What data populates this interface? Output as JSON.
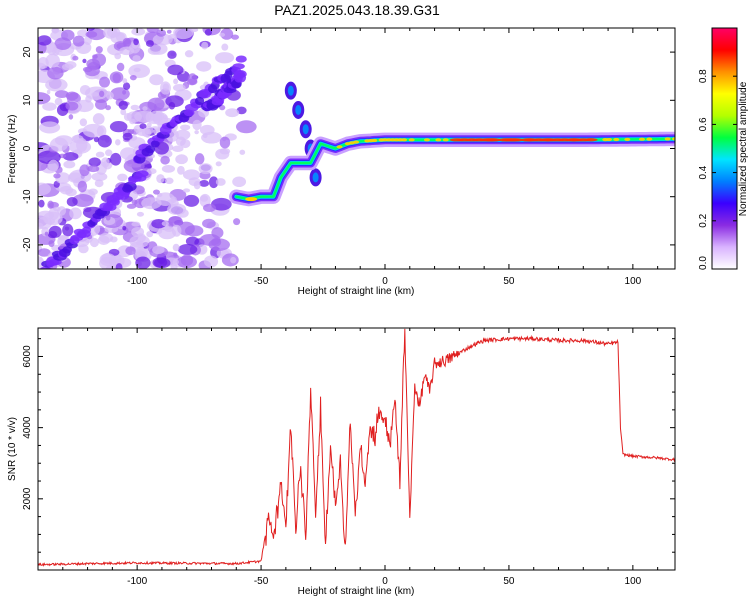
{
  "figure": {
    "title": "PAZ1.2025.043.18.39.G31"
  },
  "chart_data": [
    {
      "type": "heatmap",
      "title": "PAZ1.2025.043.18.39.G31",
      "xlabel": "Height of straight line (km)",
      "ylabel": "Frequency (Hz)",
      "xlim": [
        -140,
        117
      ],
      "ylim": [
        -25,
        25
      ],
      "xticks": [
        -100,
        -50,
        0,
        50,
        100
      ],
      "yticks": [
        -20,
        -10,
        0,
        10,
        20
      ],
      "colorbar": {
        "label": "Normalized spectral amplitude",
        "range": [
          0,
          1
        ],
        "ticks": [
          "0.0",
          "0.2",
          "0.4",
          "0.6",
          "0.8"
        ],
        "colors": [
          "#ffffff",
          "#d9b3ff",
          "#8a2be2",
          "#3a00ff",
          "#0080ff",
          "#00e5ff",
          "#00ff40",
          "#b4ff00",
          "#ffff00",
          "#ff9000",
          "#ff0000",
          "#ff0066"
        ]
      },
      "features": {
        "noise_region_x": [
          -140,
          -52
        ],
        "diagonal_streaks": [
          {
            "x": [
              -137,
              -98
            ],
            "y": [
              -25,
              -5
            ]
          },
          {
            "x": [
              -100,
              -58
            ],
            "y": [
              -2,
              18
            ]
          },
          {
            "x": [
              -72,
              -58
            ],
            "y": [
              8,
              15
            ]
          }
        ],
        "ridge": [
          {
            "x": -60,
            "y": -10
          },
          {
            "x": -55,
            "y": -10.5
          },
          {
            "x": -50,
            "y": -10
          },
          {
            "x": -45,
            "y": -10
          },
          {
            "x": -42,
            "y": -6
          },
          {
            "x": -38,
            "y": -3
          },
          {
            "x": -35,
            "y": -3
          },
          {
            "x": -30,
            "y": -3
          },
          {
            "x": -26,
            "y": 1
          },
          {
            "x": -20,
            "y": 0
          },
          {
            "x": -15,
            "y": 1
          },
          {
            "x": -10,
            "y": 1.5
          },
          {
            "x": 0,
            "y": 1.8
          },
          {
            "x": 20,
            "y": 1.8
          },
          {
            "x": 50,
            "y": 1.8
          },
          {
            "x": 80,
            "y": 1.8
          },
          {
            "x": 117,
            "y": 2
          }
        ],
        "secondary_ridge": [
          {
            "x": -38,
            "y": 12
          },
          {
            "x": -35,
            "y": 8
          },
          {
            "x": -32,
            "y": 4
          },
          {
            "x": -30,
            "y": 0
          },
          {
            "x": -28,
            "y": -6
          }
        ]
      }
    },
    {
      "type": "line",
      "xlabel": "Height of straight line (km)",
      "ylabel": "SNR (10 * v/v)",
      "xlim": [
        -140,
        117
      ],
      "ylim": [
        0,
        6800
      ],
      "xticks": [
        -100,
        -50,
        0,
        50,
        100
      ],
      "yticks": [
        2000,
        4000,
        6000
      ],
      "color": "#e02020",
      "x": [
        -140,
        -120,
        -100,
        -80,
        -60,
        -50,
        -47,
        -45,
        -42,
        -40,
        -38,
        -36,
        -34,
        -32,
        -30,
        -28,
        -26,
        -24,
        -22,
        -20,
        -18,
        -16,
        -14,
        -12,
        -10,
        -8,
        -6,
        -4,
        -2,
        0,
        2,
        4,
        6,
        8,
        10,
        12,
        14,
        16,
        18,
        20,
        25,
        30,
        35,
        40,
        50,
        60,
        70,
        80,
        90,
        94,
        95,
        96,
        100,
        110,
        117
      ],
      "y": [
        150,
        180,
        200,
        190,
        180,
        250,
        1500,
        900,
        2500,
        1200,
        4200,
        1000,
        3000,
        800,
        5200,
        1500,
        4500,
        600,
        3500,
        1800,
        3000,
        500,
        4200,
        1500,
        3500,
        2500,
        4000,
        3800,
        4500,
        4200,
        3600,
        4800,
        2500,
        6800,
        1400,
        5200,
        4600,
        5500,
        5000,
        5800,
        5900,
        6100,
        6300,
        6450,
        6500,
        6500,
        6450,
        6450,
        6350,
        6400,
        4000,
        3250,
        3200,
        3150,
        3100
      ]
    }
  ]
}
